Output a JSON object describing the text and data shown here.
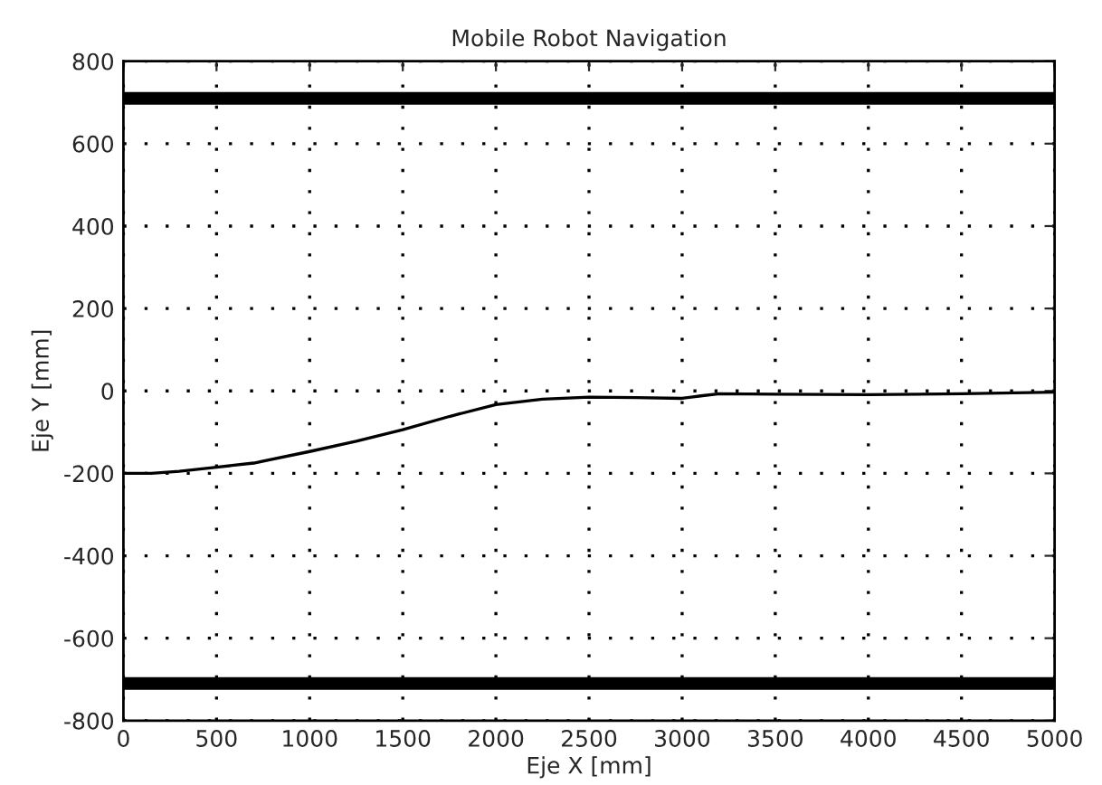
{
  "chart_data": {
    "type": "line",
    "title": "Mobile Robot Navigation",
    "xlabel": "Eje X [mm]",
    "ylabel": "Eje Y [mm]",
    "series": [
      {
        "color": "#000000",
        "x": [
          0,
          150,
          300,
          500,
          700,
          1000,
          1250,
          1500,
          1750,
          2000,
          2250,
          2500,
          2750,
          3000,
          3100,
          3200,
          3500,
          4000,
          4500,
          5000
        ],
        "values": [
          -200,
          -200,
          -195,
          -185,
          -175,
          -147,
          -122,
          -94,
          -62,
          -33,
          -20,
          -15,
          -16,
          -18,
          -12,
          -7,
          -8,
          -9,
          -7,
          -3
        ]
      }
    ],
    "ref_lines": [
      {
        "axis": "y",
        "value": 710,
        "color": "#000000"
      },
      {
        "axis": "y",
        "value": -710,
        "color": "#000000"
      }
    ],
    "xlim": [
      0,
      5000
    ],
    "xticks": [
      0,
      500,
      1000,
      1500,
      2000,
      2500,
      3000,
      3500,
      4000,
      4500,
      5000
    ],
    "ylim": [
      -800,
      800
    ],
    "yticks": [
      -800,
      -600,
      -400,
      -200,
      0,
      200,
      400,
      600,
      800
    ],
    "grid": true,
    "line_style": "solid",
    "marker": "none"
  }
}
